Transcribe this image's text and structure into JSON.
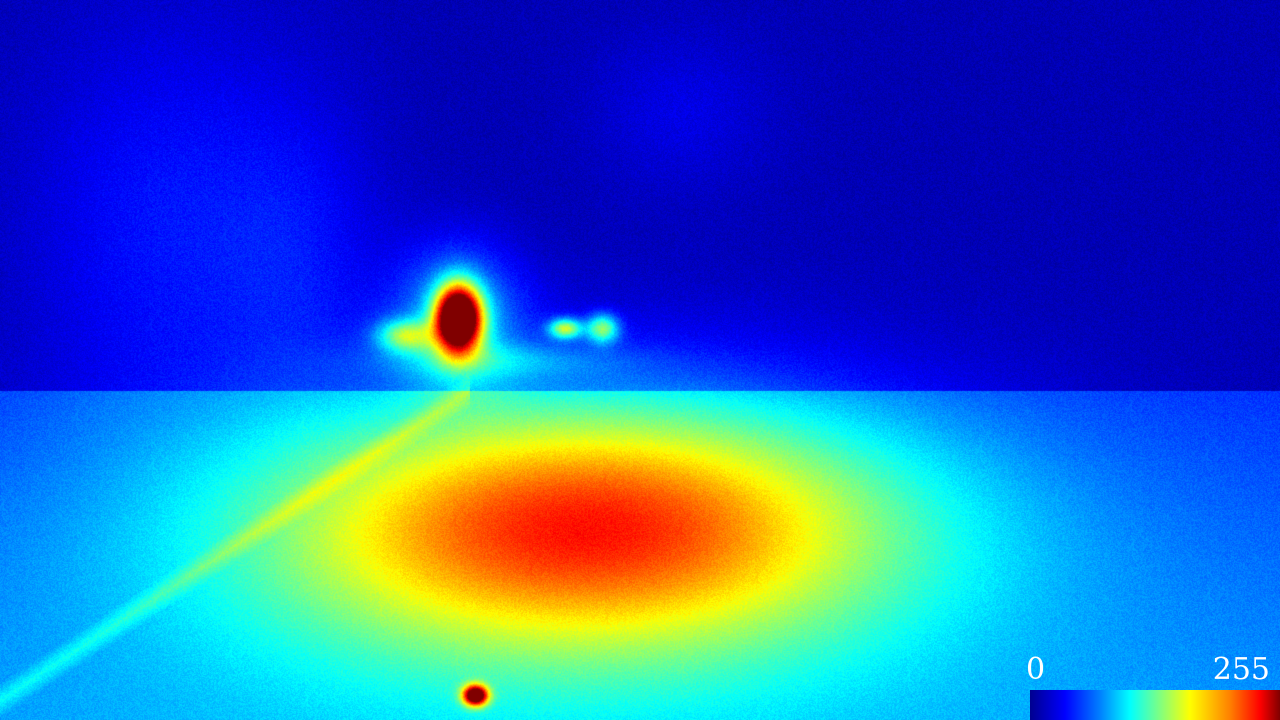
{
  "image": {
    "colormap": "jet"
  },
  "colorbar": {
    "min_label": "0",
    "max_label": "255",
    "colors": [
      "#00008f",
      "#0000ff",
      "#0080ff",
      "#00ffff",
      "#80ff80",
      "#ffff00",
      "#ff8000",
      "#ff0000",
      "#800000"
    ]
  }
}
